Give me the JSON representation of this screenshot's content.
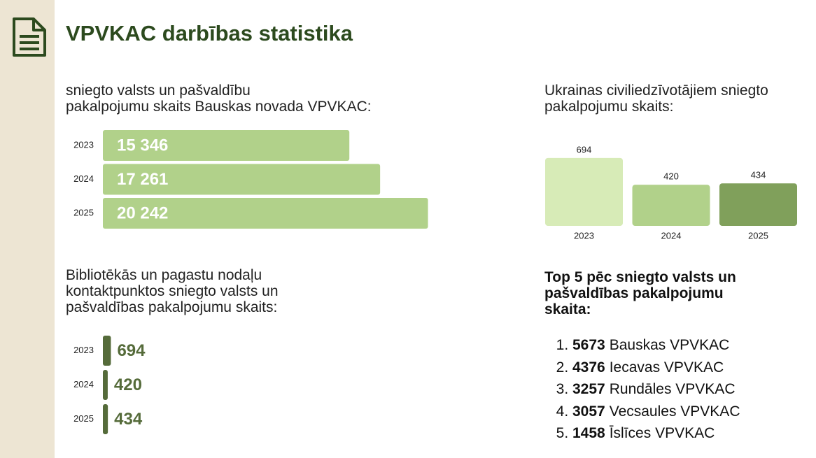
{
  "title": "VPVKAC darbības statistika",
  "chart_data": [
    {
      "type": "bar",
      "orientation": "horizontal",
      "label_position": "inside",
      "title": "sniegto valsts un pašvaldību\npakalpojumu skaits Bauskas novada VPVKAC:",
      "categories": [
        "2023",
        "2024",
        "2025"
      ],
      "values": [
        15346,
        17261,
        20242
      ],
      "value_labels": [
        "15 346",
        "17 261",
        "20 242"
      ],
      "color": "#b1d18a"
    },
    {
      "type": "bar",
      "orientation": "vertical",
      "title": "Ukrainas civiliedzīvotājiem sniegto\npakalpojumu skaits:",
      "categories": [
        "2023",
        "2024",
        "2025"
      ],
      "values": [
        694,
        420,
        434
      ],
      "colors": [
        "#d7ebb7",
        "#b1d18a",
        "#80a05b"
      ]
    },
    {
      "type": "bar",
      "orientation": "horizontal",
      "label_position": "outside",
      "title": "Bibliotēkās un pagastu nodaļu\nkontaktpunktos sniegto valsts un\npašvaldības pakalpojumu skaits:",
      "categories": [
        "2023",
        "2024",
        "2025"
      ],
      "values": [
        694,
        420,
        434
      ],
      "color": "#556b3a"
    }
  ],
  "top5": {
    "title": "Top 5 pēc sniegto valsts un\npašvaldības pakalpojumu\nskaita:",
    "items": [
      {
        "value": 5673,
        "name": "Bauskas VPVKAC"
      },
      {
        "value": 4376,
        "name": "Iecavas VPVKAC"
      },
      {
        "value": 3257,
        "name": "Rundāles VPVKAC"
      },
      {
        "value": 3057,
        "name": "Vecsaules VPVKAC"
      },
      {
        "value": 1458,
        "name": "Īslīces VPVKAC"
      }
    ]
  }
}
